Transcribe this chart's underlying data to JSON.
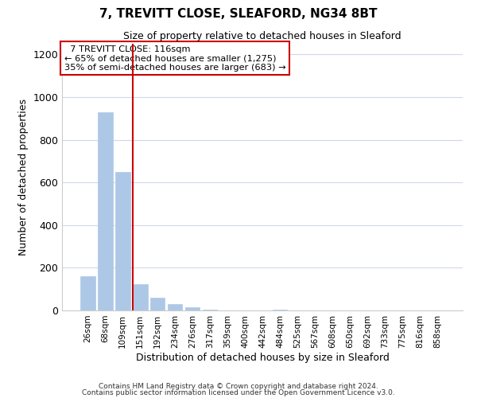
{
  "title": "7, TREVITT CLOSE, SLEAFORD, NG34 8BT",
  "subtitle": "Size of property relative to detached houses in Sleaford",
  "xlabel": "Distribution of detached houses by size in Sleaford",
  "ylabel": "Number of detached properties",
  "bar_labels": [
    "26sqm",
    "68sqm",
    "109sqm",
    "151sqm",
    "192sqm",
    "234sqm",
    "276sqm",
    "317sqm",
    "359sqm",
    "400sqm",
    "442sqm",
    "484sqm",
    "525sqm",
    "567sqm",
    "608sqm",
    "650sqm",
    "692sqm",
    "733sqm",
    "775sqm",
    "816sqm",
    "858sqm"
  ],
  "bar_values": [
    160,
    930,
    650,
    125,
    60,
    30,
    15,
    5,
    0,
    0,
    0,
    5,
    0,
    0,
    0,
    0,
    0,
    0,
    0,
    0,
    0
  ],
  "bar_color": "#adc8e6",
  "bar_edge_color": "#adc8e6",
  "redline_x": 2.57,
  "redline_color": "#cc0000",
  "ylim": [
    0,
    1250
  ],
  "yticks": [
    0,
    200,
    400,
    600,
    800,
    1000,
    1200
  ],
  "annotation_title": "7 TREVITT CLOSE: 116sqm",
  "annotation_line1": "← 65% of detached houses are smaller (1,275)",
  "annotation_line2": "35% of semi-detached houses are larger (683) →",
  "annotation_box_color": "#ffffff",
  "annotation_box_edge": "#cc0000",
  "footer_line1": "Contains HM Land Registry data © Crown copyright and database right 2024.",
  "footer_line2": "Contains public sector information licensed under the Open Government Licence v3.0.",
  "background_color": "#ffffff",
  "grid_color": "#d0d8e8"
}
